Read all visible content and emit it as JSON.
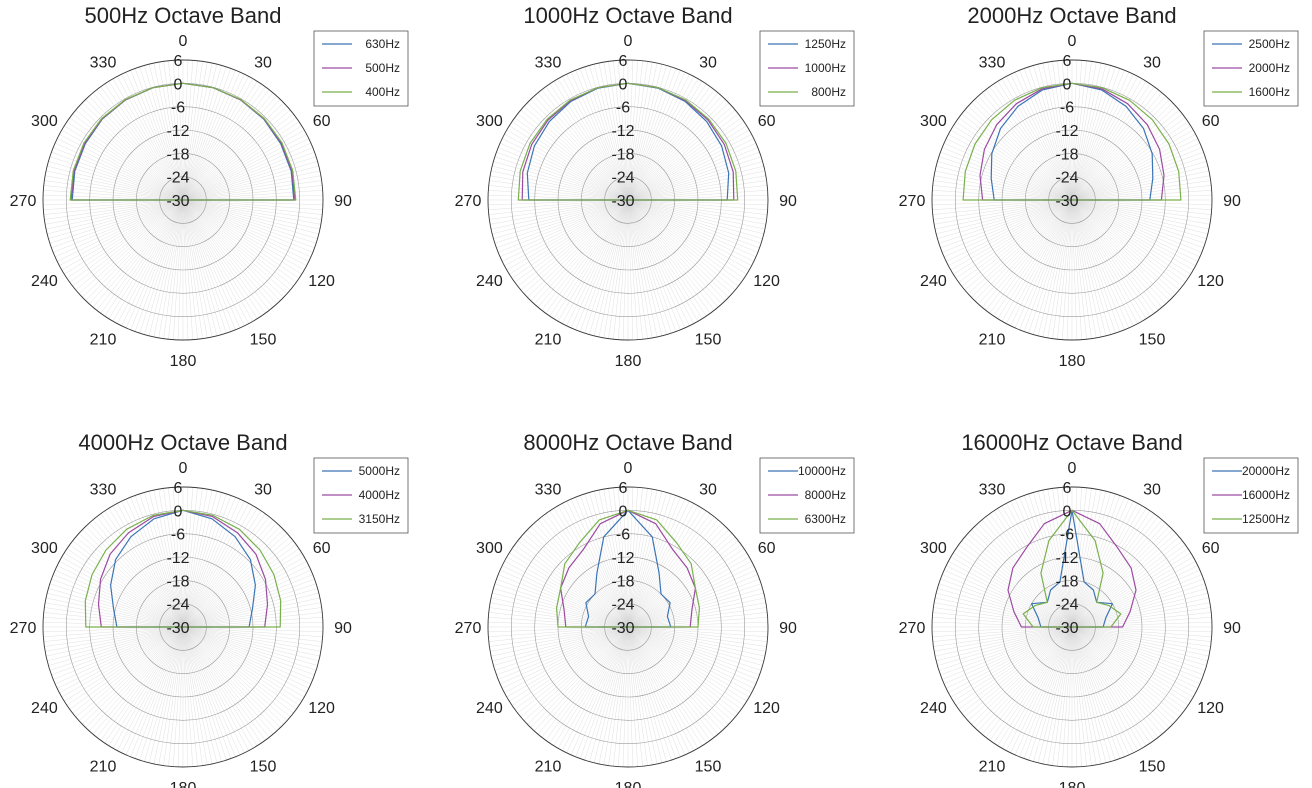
{
  "chart_data": [
    {
      "type": "polar-line",
      "title": "500Hz Octave Band",
      "r_ticks": [
        "-30",
        "-24",
        "-18",
        "-12",
        "-6",
        "0",
        "6"
      ],
      "rlim": [
        -30,
        6
      ],
      "theta_ticks": [
        "0",
        "30",
        "60",
        "90",
        "120",
        "150",
        "180",
        "210",
        "240",
        "270",
        "300",
        "330"
      ],
      "theta_direction": "clockwise",
      "theta_zero": "top",
      "grid": true,
      "legend_position": "top-right",
      "series": [
        {
          "name": "630Hz",
          "color": "#3b74b5",
          "theta": [
            -90,
            -75,
            -60,
            -45,
            -30,
            -15,
            0,
            15,
            30,
            45,
            60,
            75,
            90
          ],
          "r": [
            -1.5,
            -1.2,
            -1.0,
            -0.6,
            -0.3,
            -0.1,
            0,
            -0.1,
            -0.3,
            -0.6,
            -1.0,
            -1.2,
            -1.5
          ]
        },
        {
          "name": "500Hz",
          "color": "#9c4aa2",
          "theta": [
            -90,
            -75,
            -60,
            -45,
            -30,
            -15,
            0,
            15,
            30,
            45,
            60,
            75,
            90
          ],
          "r": [
            -1.2,
            -1.0,
            -0.8,
            -0.5,
            -0.3,
            -0.1,
            0,
            -0.1,
            -0.3,
            -0.5,
            -0.8,
            -1.0,
            -1.2
          ]
        },
        {
          "name": "400Hz",
          "color": "#79b04c",
          "theta": [
            -90,
            -75,
            -60,
            -45,
            -30,
            -15,
            0,
            15,
            30,
            45,
            60,
            75,
            90
          ],
          "r": [
            -1.0,
            -0.8,
            -0.6,
            -0.4,
            -0.2,
            -0.1,
            0,
            -0.1,
            -0.2,
            -0.4,
            -0.6,
            -0.8,
            -1.0
          ]
        }
      ]
    },
    {
      "type": "polar-line",
      "title": "1000Hz Octave Band",
      "r_ticks": [
        "-30",
        "-24",
        "-18",
        "-12",
        "-6",
        "0",
        "6"
      ],
      "rlim": [
        -30,
        6
      ],
      "theta_ticks": [
        "0",
        "30",
        "60",
        "90",
        "120",
        "150",
        "180",
        "210",
        "240",
        "270",
        "300",
        "330"
      ],
      "theta_direction": "clockwise",
      "theta_zero": "top",
      "grid": true,
      "legend_position": "top-right",
      "series": [
        {
          "name": "1250Hz",
          "color": "#3b74b5",
          "theta": [
            -90,
            -75,
            -60,
            -45,
            -30,
            -15,
            0,
            15,
            30,
            45,
            60,
            75,
            90
          ],
          "r": [
            -4.5,
            -3.2,
            -2.2,
            -1.4,
            -0.7,
            -0.2,
            0,
            -0.2,
            -0.7,
            -1.4,
            -2.2,
            -3.2,
            -4.5
          ]
        },
        {
          "name": "1000Hz",
          "color": "#9c4aa2",
          "theta": [
            -90,
            -75,
            -60,
            -45,
            -30,
            -15,
            0,
            15,
            30,
            45,
            60,
            75,
            90
          ],
          "r": [
            -2.8,
            -2.0,
            -1.4,
            -0.9,
            -0.5,
            -0.1,
            0,
            -0.1,
            -0.5,
            -0.9,
            -1.4,
            -2.0,
            -2.8
          ]
        },
        {
          "name": "800Hz",
          "color": "#79b04c",
          "theta": [
            -90,
            -75,
            -60,
            -45,
            -30,
            -15,
            0,
            15,
            30,
            45,
            60,
            75,
            90
          ],
          "r": [
            -1.8,
            -1.3,
            -0.9,
            -0.6,
            -0.3,
            -0.1,
            0,
            -0.1,
            -0.3,
            -0.6,
            -0.9,
            -1.3,
            -1.8
          ]
        }
      ]
    },
    {
      "type": "polar-line",
      "title": "2000Hz Octave Band",
      "r_ticks": [
        "-30",
        "-24",
        "-18",
        "-12",
        "-6",
        "0",
        "6"
      ],
      "rlim": [
        -30,
        6
      ],
      "theta_ticks": [
        "0",
        "30",
        "60",
        "90",
        "120",
        "150",
        "180",
        "210",
        "240",
        "270",
        "300",
        "330"
      ],
      "theta_direction": "clockwise",
      "theta_zero": "top",
      "grid": true,
      "legend_position": "top-right",
      "series": [
        {
          "name": "2500Hz",
          "color": "#3b74b5",
          "theta": [
            -90,
            -75,
            -60,
            -45,
            -30,
            -15,
            0,
            15,
            30,
            45,
            60,
            75,
            90
          ],
          "r": [
            -10.0,
            -8.5,
            -6.2,
            -4.0,
            -2.2,
            -0.7,
            0,
            -0.7,
            -2.2,
            -4.0,
            -6.2,
            -8.5,
            -10.0
          ]
        },
        {
          "name": "2000Hz",
          "color": "#9c4aa2",
          "theta": [
            -90,
            -75,
            -60,
            -45,
            -30,
            -15,
            0,
            15,
            30,
            45,
            60,
            75,
            90
          ],
          "r": [
            -7.0,
            -5.5,
            -4.0,
            -2.6,
            -1.4,
            -0.4,
            0,
            -0.4,
            -1.4,
            -2.6,
            -4.0,
            -5.5,
            -7.0
          ]
        },
        {
          "name": "1600Hz",
          "color": "#79b04c",
          "theta": [
            -90,
            -75,
            -60,
            -45,
            -30,
            -15,
            0,
            15,
            30,
            45,
            60,
            75,
            90
          ],
          "r": [
            -2.0,
            -1.6,
            -1.2,
            -0.8,
            -0.4,
            -0.1,
            0,
            -0.1,
            -0.4,
            -0.8,
            -1.2,
            -1.6,
            -2.0
          ]
        }
      ]
    },
    {
      "type": "polar-line",
      "title": "4000Hz Octave Band",
      "r_ticks": [
        "-30",
        "-24",
        "-18",
        "-12",
        "-6",
        "0",
        "6"
      ],
      "rlim": [
        -30,
        6
      ],
      "theta_ticks": [
        "0",
        "30",
        "60",
        "90",
        "120",
        "150",
        "180",
        "210",
        "240",
        "270",
        "300",
        "330"
      ],
      "theta_direction": "clockwise",
      "theta_zero": "top",
      "grid": true,
      "legend_position": "top-right",
      "series": [
        {
          "name": "5000Hz",
          "color": "#3b74b5",
          "theta": [
            -90,
            -75,
            -60,
            -45,
            -30,
            -15,
            0,
            15,
            30,
            45,
            60,
            75,
            90
          ],
          "r": [
            -13.0,
            -11.5,
            -8.5,
            -5.5,
            -3.2,
            -1.2,
            0,
            -1.2,
            -3.2,
            -5.5,
            -8.5,
            -11.5,
            -13.0
          ]
        },
        {
          "name": "4000Hz",
          "color": "#9c4aa2",
          "theta": [
            -90,
            -75,
            -60,
            -45,
            -30,
            -15,
            0,
            15,
            30,
            45,
            60,
            75,
            90
          ],
          "r": [
            -9.0,
            -7.5,
            -5.5,
            -3.5,
            -2.0,
            -0.6,
            0,
            -0.6,
            -2.0,
            -3.5,
            -5.5,
            -7.5,
            -9.0
          ]
        },
        {
          "name": "3150Hz",
          "color": "#79b04c",
          "theta": [
            -90,
            -75,
            -60,
            -45,
            -30,
            -15,
            0,
            15,
            30,
            45,
            60,
            75,
            90
          ],
          "r": [
            -5.0,
            -4.0,
            -3.0,
            -2.0,
            -1.0,
            -0.3,
            0,
            -0.3,
            -1.0,
            -2.0,
            -3.0,
            -4.0,
            -5.0
          ]
        }
      ]
    },
    {
      "type": "polar-line",
      "title": "8000Hz Octave Band",
      "r_ticks": [
        "-30",
        "-24",
        "-18",
        "-12",
        "-6",
        "0",
        "6"
      ],
      "rlim": [
        -30,
        6
      ],
      "theta_ticks": [
        "0",
        "30",
        "60",
        "90",
        "120",
        "150",
        "180",
        "210",
        "240",
        "270",
        "300",
        "330"
      ],
      "theta_direction": "clockwise",
      "theta_zero": "top",
      "grid": true,
      "legend_position": "top-right",
      "series": [
        {
          "name": "10000Hz",
          "color": "#3b74b5",
          "theta": [
            -90,
            -75,
            -60,
            -45,
            -30,
            -15,
            0,
            15,
            30,
            45,
            60,
            75,
            90
          ],
          "r": [
            -19.0,
            -19.5,
            -17.5,
            -18.0,
            -14.0,
            -6.0,
            0,
            -6.0,
            -14.0,
            -18.0,
            -17.5,
            -19.5,
            -19.0
          ]
        },
        {
          "name": "8000Hz",
          "color": "#9c4aa2",
          "theta": [
            -90,
            -75,
            -60,
            -45,
            -30,
            -15,
            0,
            15,
            30,
            45,
            60,
            75,
            90
          ],
          "r": [
            -14.0,
            -13.0,
            -10.0,
            -8.5,
            -7.0,
            -2.5,
            0,
            -2.5,
            -7.0,
            -8.5,
            -10.0,
            -13.0,
            -14.0
          ]
        },
        {
          "name": "6300Hz",
          "color": "#79b04c",
          "theta": [
            -90,
            -75,
            -60,
            -45,
            -30,
            -15,
            0,
            15,
            30,
            45,
            60,
            75,
            90
          ],
          "r": [
            -12.0,
            -11.0,
            -10.0,
            -7.0,
            -5.0,
            -1.5,
            0,
            -1.5,
            -5.0,
            -7.0,
            -10.0,
            -11.0,
            -12.0
          ]
        }
      ]
    },
    {
      "type": "polar-line",
      "title": "16000Hz Octave Band",
      "r_ticks": [
        "-30",
        "-24",
        "-18",
        "-12",
        "-6",
        "0",
        "6"
      ],
      "rlim": [
        -30,
        6
      ],
      "theta_ticks": [
        "0",
        "30",
        "60",
        "90",
        "120",
        "150",
        "180",
        "210",
        "240",
        "270",
        "300",
        "330"
      ],
      "theta_direction": "clockwise",
      "theta_zero": "top",
      "grid": true,
      "legend_position": "top-right",
      "series": [
        {
          "name": "20000Hz",
          "color": "#3b74b5",
          "theta": [
            -90,
            -75,
            -60,
            -45,
            -30,
            -15,
            0,
            15,
            30,
            45,
            60,
            75,
            90
          ],
          "r": [
            -22.0,
            -21.0,
            -18.0,
            -21.0,
            -19.0,
            -18.0,
            0,
            -18.0,
            -19.0,
            -21.0,
            -18.0,
            -21.0,
            -22.0
          ]
        },
        {
          "name": "16000Hz",
          "color": "#9c4aa2",
          "theta": [
            -90,
            -75,
            -60,
            -45,
            -30,
            -15,
            0,
            15,
            30,
            45,
            60,
            75,
            90
          ],
          "r": [
            -17.0,
            -14.5,
            -11.0,
            -8.5,
            -6.5,
            -2.5,
            0,
            -2.5,
            -6.5,
            -8.5,
            -11.0,
            -14.5,
            -17.0
          ]
        },
        {
          "name": "12500Hz",
          "color": "#79b04c",
          "theta": [
            -90,
            -75,
            -60,
            -45,
            -30,
            -15,
            0,
            15,
            30,
            45,
            60,
            75,
            90
          ],
          "r": [
            -20.0,
            -17.0,
            -19.0,
            -21.0,
            -14.0,
            -7.0,
            0,
            -7.0,
            -14.0,
            -21.0,
            -19.0,
            -17.0,
            -20.0
          ]
        }
      ]
    }
  ]
}
